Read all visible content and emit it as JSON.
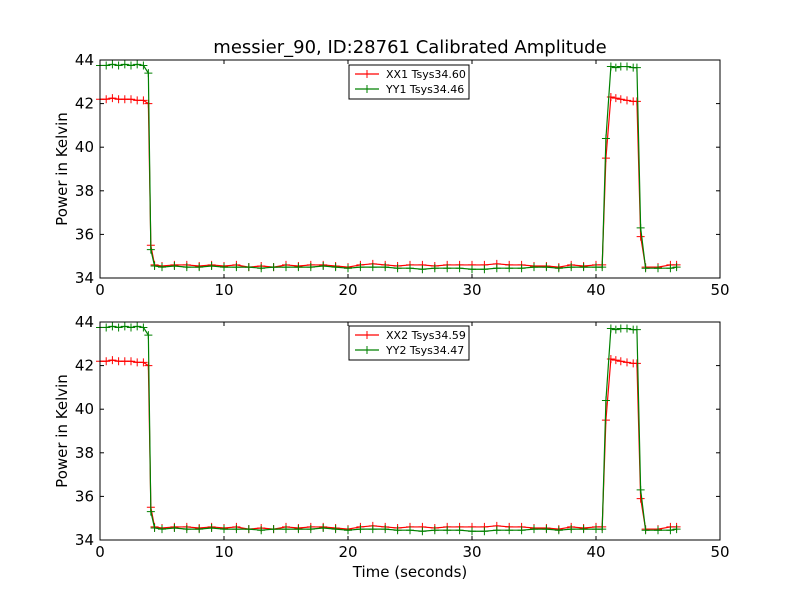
{
  "figure": {
    "title": "messier_90, ID:28761 Calibrated Amplitude",
    "xlabel": "Time (seconds)"
  },
  "chart_data": [
    {
      "type": "line",
      "title": "messier_90, ID:28761 Calibrated Amplitude",
      "xlabel": "",
      "ylabel": "Power in Kelvin",
      "xlim": [
        0,
        50
      ],
      "ylim": [
        34,
        44
      ],
      "xticks": [
        "0",
        "10",
        "20",
        "30",
        "40",
        "50"
      ],
      "yticks": [
        "34",
        "36",
        "38",
        "40",
        "42",
        "44"
      ],
      "grid": false,
      "legend_position": "top-center",
      "marker": "+",
      "series": [
        {
          "name": "XX1 Tsys34.60",
          "color": "#ff0000",
          "x": [
            0,
            0.5,
            1,
            1.5,
            2,
            2.5,
            3,
            3.5,
            3.9,
            4.1,
            4.4,
            5,
            6,
            7,
            8,
            9,
            10,
            11,
            12,
            13,
            14,
            15,
            16,
            17,
            18,
            19,
            20,
            21,
            22,
            23,
            24,
            25,
            26,
            27,
            28,
            29,
            30,
            31,
            32,
            33,
            34,
            35,
            36,
            37,
            38,
            39,
            40,
            40.5,
            40.8,
            41.2,
            41.6,
            42,
            42.5,
            43,
            43.3,
            43.6,
            44,
            45,
            46,
            46.5
          ],
          "y": [
            42.2,
            42.2,
            42.25,
            42.2,
            42.2,
            42.2,
            42.15,
            42.15,
            42.0,
            35.5,
            34.6,
            34.55,
            34.6,
            34.6,
            34.55,
            34.6,
            34.55,
            34.6,
            34.5,
            34.55,
            34.5,
            34.6,
            34.55,
            34.6,
            34.6,
            34.55,
            34.5,
            34.6,
            34.65,
            34.6,
            34.55,
            34.6,
            34.6,
            34.55,
            34.6,
            34.6,
            34.6,
            34.6,
            34.65,
            34.6,
            34.6,
            34.55,
            34.55,
            34.5,
            34.6,
            34.55,
            34.6,
            34.6,
            39.5,
            42.3,
            42.25,
            42.2,
            42.15,
            42.1,
            42.1,
            35.9,
            34.5,
            34.5,
            34.6,
            34.6
          ]
        },
        {
          "name": "YY1 Tsys34.46",
          "color": "#008000",
          "x": [
            0,
            0.5,
            1,
            1.5,
            2,
            2.5,
            3,
            3.5,
            3.9,
            4.1,
            4.4,
            5,
            6,
            7,
            8,
            9,
            10,
            11,
            12,
            13,
            14,
            15,
            16,
            17,
            18,
            19,
            20,
            21,
            22,
            23,
            24,
            25,
            26,
            27,
            28,
            29,
            30,
            31,
            32,
            33,
            34,
            35,
            36,
            37,
            38,
            39,
            40,
            40.5,
            40.8,
            41.2,
            41.6,
            42,
            42.5,
            43,
            43.3,
            43.6,
            44,
            45,
            46,
            46.5
          ],
          "y": [
            43.75,
            43.75,
            43.8,
            43.75,
            43.8,
            43.75,
            43.8,
            43.75,
            43.4,
            35.3,
            34.55,
            34.5,
            34.55,
            34.5,
            34.5,
            34.55,
            34.5,
            34.5,
            34.5,
            34.45,
            34.5,
            34.5,
            34.5,
            34.5,
            34.55,
            34.5,
            34.45,
            34.5,
            34.5,
            34.5,
            34.45,
            34.45,
            34.4,
            34.45,
            34.45,
            34.45,
            34.4,
            34.4,
            34.45,
            34.45,
            34.45,
            34.5,
            34.5,
            34.45,
            34.5,
            34.5,
            34.5,
            34.5,
            40.4,
            43.7,
            43.65,
            43.7,
            43.7,
            43.65,
            43.65,
            36.3,
            34.45,
            34.45,
            34.45,
            34.5
          ]
        }
      ]
    },
    {
      "type": "line",
      "title": "",
      "xlabel": "Time (seconds)",
      "ylabel": "Power in Kelvin",
      "xlim": [
        0,
        50
      ],
      "ylim": [
        34,
        44
      ],
      "xticks": [
        "0",
        "10",
        "20",
        "30",
        "40",
        "50"
      ],
      "yticks": [
        "34",
        "36",
        "38",
        "40",
        "42",
        "44"
      ],
      "grid": false,
      "legend_position": "top-center",
      "marker": "+",
      "series": [
        {
          "name": "XX2 Tsys34.59",
          "color": "#ff0000",
          "x": [
            0,
            0.5,
            1,
            1.5,
            2,
            2.5,
            3,
            3.5,
            3.9,
            4.1,
            4.4,
            5,
            6,
            7,
            8,
            9,
            10,
            11,
            12,
            13,
            14,
            15,
            16,
            17,
            18,
            19,
            20,
            21,
            22,
            23,
            24,
            25,
            26,
            27,
            28,
            29,
            30,
            31,
            32,
            33,
            34,
            35,
            36,
            37,
            38,
            39,
            40,
            40.5,
            40.8,
            41.2,
            41.6,
            42,
            42.5,
            43,
            43.3,
            43.6,
            44,
            45,
            46,
            46.5
          ],
          "y": [
            42.2,
            42.2,
            42.25,
            42.2,
            42.2,
            42.2,
            42.15,
            42.15,
            42.0,
            35.5,
            34.6,
            34.55,
            34.6,
            34.6,
            34.55,
            34.6,
            34.55,
            34.6,
            34.5,
            34.55,
            34.5,
            34.6,
            34.55,
            34.6,
            34.6,
            34.55,
            34.5,
            34.6,
            34.65,
            34.6,
            34.55,
            34.6,
            34.6,
            34.55,
            34.6,
            34.6,
            34.6,
            34.6,
            34.65,
            34.6,
            34.6,
            34.55,
            34.55,
            34.5,
            34.6,
            34.55,
            34.6,
            34.6,
            39.5,
            42.3,
            42.25,
            42.2,
            42.15,
            42.1,
            42.1,
            35.9,
            34.5,
            34.5,
            34.6,
            34.6
          ]
        },
        {
          "name": "YY2 Tsys34.47",
          "color": "#008000",
          "x": [
            0,
            0.5,
            1,
            1.5,
            2,
            2.5,
            3,
            3.5,
            3.9,
            4.1,
            4.4,
            5,
            6,
            7,
            8,
            9,
            10,
            11,
            12,
            13,
            14,
            15,
            16,
            17,
            18,
            19,
            20,
            21,
            22,
            23,
            24,
            25,
            26,
            27,
            28,
            29,
            30,
            31,
            32,
            33,
            34,
            35,
            36,
            37,
            38,
            39,
            40,
            40.5,
            40.8,
            41.2,
            41.6,
            42,
            42.5,
            43,
            43.3,
            43.6,
            44,
            45,
            46,
            46.5
          ],
          "y": [
            43.75,
            43.75,
            43.8,
            43.75,
            43.8,
            43.75,
            43.8,
            43.75,
            43.4,
            35.3,
            34.55,
            34.5,
            34.55,
            34.5,
            34.5,
            34.55,
            34.5,
            34.5,
            34.5,
            34.45,
            34.5,
            34.5,
            34.5,
            34.5,
            34.55,
            34.5,
            34.45,
            34.5,
            34.5,
            34.5,
            34.45,
            34.45,
            34.4,
            34.45,
            34.45,
            34.45,
            34.4,
            34.4,
            34.45,
            34.45,
            34.45,
            34.5,
            34.5,
            34.45,
            34.5,
            34.5,
            34.5,
            34.5,
            40.4,
            43.7,
            43.65,
            43.7,
            43.7,
            43.65,
            43.65,
            36.3,
            34.45,
            34.45,
            34.45,
            34.5
          ]
        }
      ]
    }
  ]
}
